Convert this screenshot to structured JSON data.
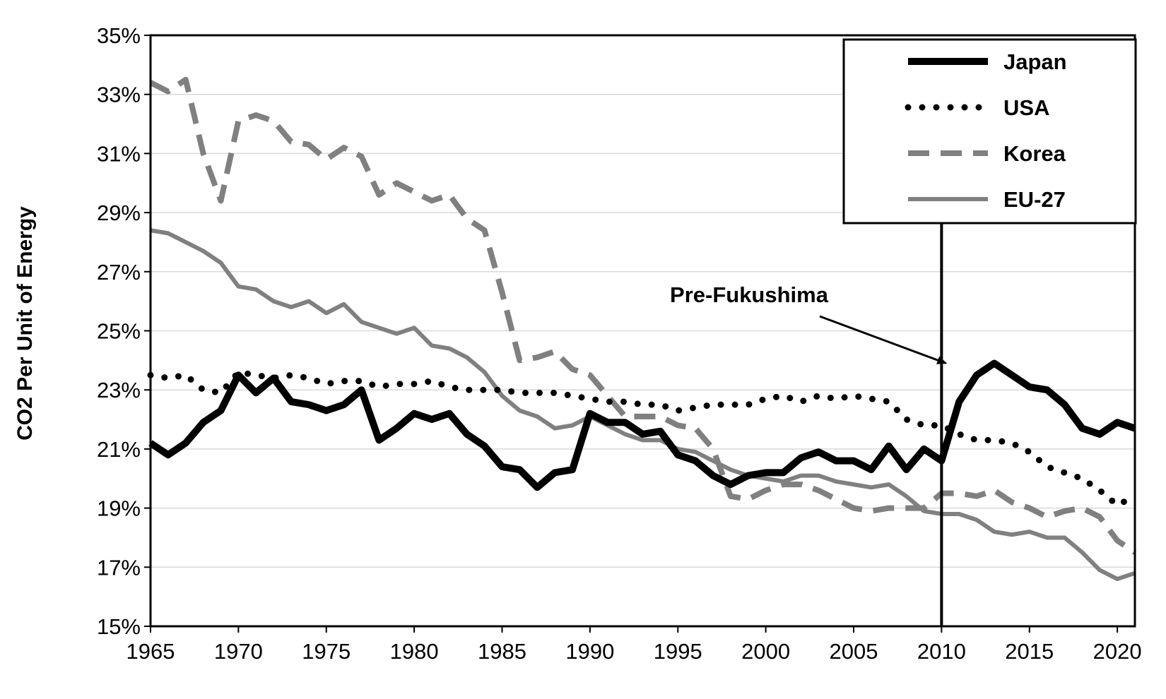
{
  "chart_data": {
    "type": "line",
    "title": "",
    "xlabel": "",
    "ylabel": "CO2 Per Unit of Energy",
    "xlim": [
      1965,
      2021
    ],
    "ylim": [
      15,
      35
    ],
    "x_ticks": [
      1965,
      1970,
      1975,
      1980,
      1985,
      1990,
      1995,
      2000,
      2005,
      2010,
      2015,
      2020
    ],
    "y_ticks": [
      15,
      17,
      19,
      21,
      23,
      25,
      27,
      29,
      31,
      33,
      35
    ],
    "y_tick_labels": [
      "15%",
      "17%",
      "19%",
      "21%",
      "23%",
      "25%",
      "27%",
      "29%",
      "31%",
      "33%",
      "35%"
    ],
    "grid": "horizontal",
    "legend_position": "top-right",
    "x": [
      1965,
      1966,
      1967,
      1968,
      1969,
      1970,
      1971,
      1972,
      1973,
      1974,
      1975,
      1976,
      1977,
      1978,
      1979,
      1980,
      1981,
      1982,
      1983,
      1984,
      1985,
      1986,
      1987,
      1988,
      1989,
      1990,
      1991,
      1992,
      1993,
      1994,
      1995,
      1996,
      1997,
      1998,
      1999,
      2000,
      2001,
      2002,
      2003,
      2004,
      2005,
      2006,
      2007,
      2008,
      2009,
      2010,
      2011,
      2012,
      2013,
      2014,
      2015,
      2016,
      2017,
      2018,
      2019,
      2020,
      2021
    ],
    "series": [
      {
        "name": "Japan",
        "color": "#000000",
        "style": "solid-thick",
        "values": [
          21.2,
          20.8,
          21.2,
          21.9,
          22.3,
          23.5,
          22.9,
          23.4,
          22.6,
          22.5,
          22.3,
          22.5,
          23.0,
          21.3,
          21.7,
          22.2,
          22.0,
          22.2,
          21.5,
          21.1,
          20.4,
          20.3,
          19.7,
          20.2,
          20.3,
          22.2,
          21.9,
          21.9,
          21.5,
          21.6,
          20.8,
          20.6,
          20.1,
          19.8,
          20.1,
          20.2,
          20.2,
          20.7,
          20.9,
          20.6,
          20.6,
          20.3,
          21.1,
          20.3,
          21.0,
          20.6,
          22.6,
          23.5,
          23.9,
          23.5,
          23.1,
          23.0,
          22.5,
          21.7,
          21.5,
          21.9,
          21.7
        ]
      },
      {
        "name": "USA",
        "color": "#000000",
        "style": "dotted",
        "values": [
          23.5,
          23.4,
          23.5,
          23.0,
          22.9,
          23.6,
          23.5,
          23.4,
          23.5,
          23.4,
          23.2,
          23.3,
          23.3,
          23.1,
          23.2,
          23.2,
          23.3,
          23.1,
          23.0,
          23.0,
          23.0,
          22.9,
          22.9,
          22.9,
          22.8,
          22.7,
          22.6,
          22.6,
          22.5,
          22.5,
          22.3,
          22.4,
          22.5,
          22.5,
          22.5,
          22.7,
          22.8,
          22.6,
          22.8,
          22.7,
          22.8,
          22.7,
          22.6,
          22.0,
          21.8,
          21.8,
          21.5,
          21.3,
          21.3,
          21.2,
          20.9,
          20.4,
          20.2,
          20.0,
          19.6,
          19.1,
          19.4
        ]
      },
      {
        "name": "Korea",
        "color": "#808080",
        "style": "dashed",
        "values": [
          33.4,
          33.1,
          33.5,
          31.0,
          29.4,
          32.1,
          32.3,
          32.1,
          31.4,
          31.3,
          30.8,
          31.2,
          30.9,
          29.6,
          30.0,
          29.7,
          29.4,
          29.6,
          28.8,
          28.4,
          26.3,
          24.0,
          24.1,
          24.3,
          23.7,
          23.5,
          22.8,
          22.1,
          22.1,
          22.1,
          21.8,
          21.7,
          21.0,
          19.4,
          19.3,
          19.6,
          19.8,
          19.8,
          19.6,
          19.3,
          19.0,
          18.9,
          19.0,
          19.0,
          19.0,
          19.5,
          19.5,
          19.4,
          19.6,
          19.2,
          19.0,
          18.7,
          18.9,
          19.0,
          18.7,
          17.9,
          17.5
        ]
      },
      {
        "name": "EU-27",
        "color": "#808080",
        "style": "solid",
        "values": [
          28.4,
          28.3,
          28.0,
          27.7,
          27.3,
          26.5,
          26.4,
          26.0,
          25.8,
          26.0,
          25.6,
          25.9,
          25.3,
          25.1,
          24.9,
          25.1,
          24.5,
          24.4,
          24.1,
          23.6,
          22.8,
          22.3,
          22.1,
          21.7,
          21.8,
          22.1,
          21.8,
          21.5,
          21.3,
          21.3,
          21.0,
          20.9,
          20.6,
          20.3,
          20.1,
          20.0,
          19.9,
          20.1,
          20.1,
          19.9,
          19.8,
          19.7,
          19.8,
          19.4,
          18.9,
          18.8,
          18.8,
          18.6,
          18.2,
          18.1,
          18.2,
          18.0,
          18.0,
          17.5,
          16.9,
          16.6,
          16.8
        ]
      }
    ],
    "annotations": [
      {
        "type": "vertical-line",
        "x": 2010
      },
      {
        "type": "text-arrow",
        "text": "Pre-Fukushima",
        "target_x": 2010,
        "target_y": 24.0
      }
    ]
  }
}
